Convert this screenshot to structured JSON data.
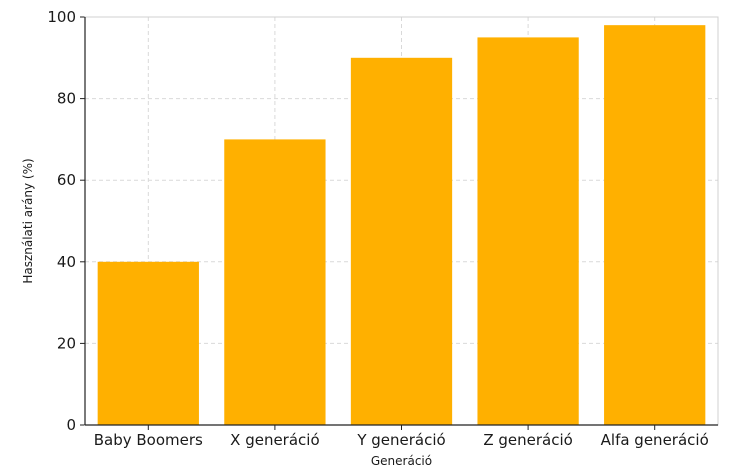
{
  "chart_data": {
    "type": "bar",
    "title": "",
    "xlabel": "Generáció",
    "ylabel": "Használati arány (%)",
    "categories": [
      "Baby Boomers",
      "X generáció",
      "Y generáció",
      "Z generáció",
      "Alfa generáció"
    ],
    "values": [
      40,
      70,
      90,
      95,
      98
    ],
    "ylim": [
      0,
      100
    ],
    "yticks": [
      0,
      20,
      40,
      60,
      80,
      100
    ],
    "grid": true,
    "legend": "none",
    "colors": {
      "bar": "#FFB000",
      "grid": "#d9d9d9",
      "axis": "#222222"
    }
  }
}
